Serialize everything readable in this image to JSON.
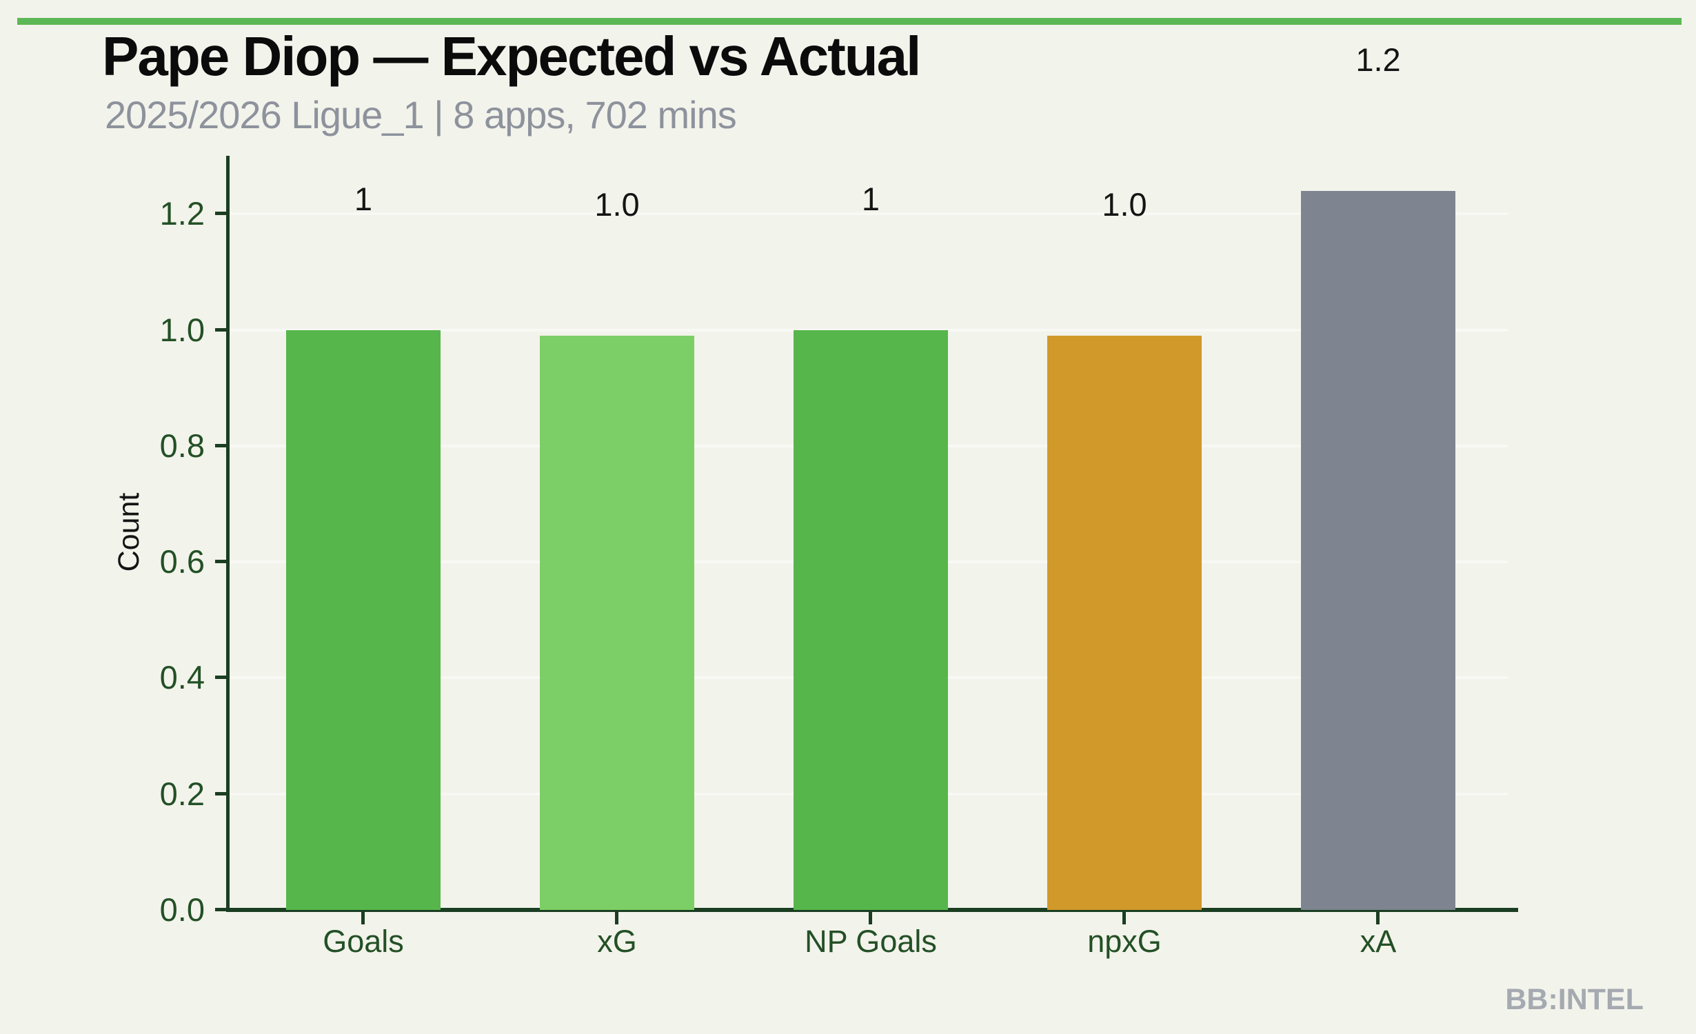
{
  "header": {
    "title": "Pape Diop — Expected vs Actual",
    "subtitle": "2025/2026 Ligue_1 | 8 apps, 702 mins"
  },
  "watermark": {
    "text": "BB:INTEL"
  },
  "colors": {
    "background": "#F2F3EB",
    "top_accent_bar": "#5BB854",
    "axis": "#1B3E22",
    "tick_label": "#235026",
    "title": "#0B0B0B",
    "subtitle": "#8D929C",
    "watermark": "#A5AAB1",
    "gridline": "rgba(255,255,255,0.45)"
  },
  "chart_data": {
    "type": "bar",
    "categories": [
      "Goals",
      "xG",
      "NP Goals",
      "npxG",
      "xA"
    ],
    "values": [
      1.0,
      0.99,
      1.0,
      0.99,
      1.24
    ],
    "bar_labels": [
      "1",
      "1.0",
      "1",
      "1.0",
      "1.2"
    ],
    "bar_colors": [
      "#56B64B",
      "#7CCF66",
      "#56B64B",
      "#D0992A",
      "#7E8590"
    ],
    "title": "Pape Diop — Expected vs Actual",
    "xlabel": "",
    "ylabel": "Count",
    "ylim": [
      0,
      1.3
    ],
    "yticks": [
      0.0,
      0.2,
      0.4,
      0.6,
      0.8,
      1.0,
      1.2
    ],
    "ytick_labels": [
      "0.0",
      "0.2",
      "0.4",
      "0.6",
      "0.8",
      "1.0",
      "1.2"
    ],
    "grid": "horizontal white lines at each y tick",
    "legend": "none"
  }
}
